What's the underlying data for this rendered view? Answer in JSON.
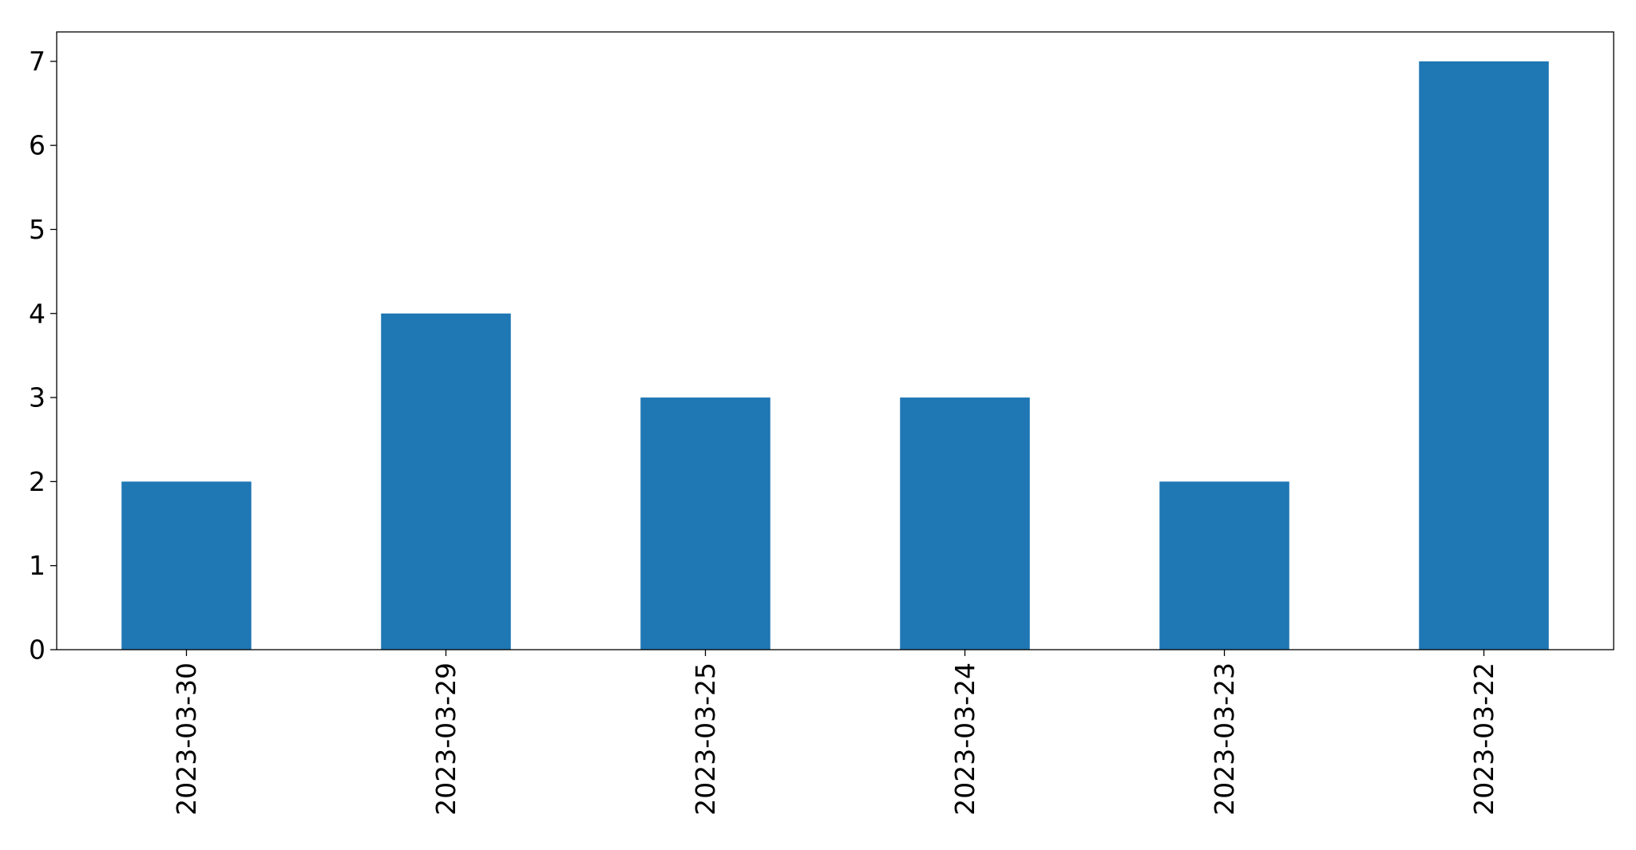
{
  "chart_data": {
    "type": "bar",
    "title": "",
    "xlabel": "",
    "ylabel": "",
    "categories": [
      "2023-03-30",
      "2023-03-29",
      "2023-03-25",
      "2023-03-24",
      "2023-03-23",
      "2023-03-22"
    ],
    "values": [
      2,
      4,
      3,
      3,
      2,
      7
    ],
    "ylim": [
      0,
      7.35
    ],
    "yticks": [
      "0",
      "1",
      "2",
      "3",
      "4",
      "5",
      "6",
      "7"
    ],
    "bar_color": "#1f77b4",
    "grid": false,
    "legend": "none"
  }
}
